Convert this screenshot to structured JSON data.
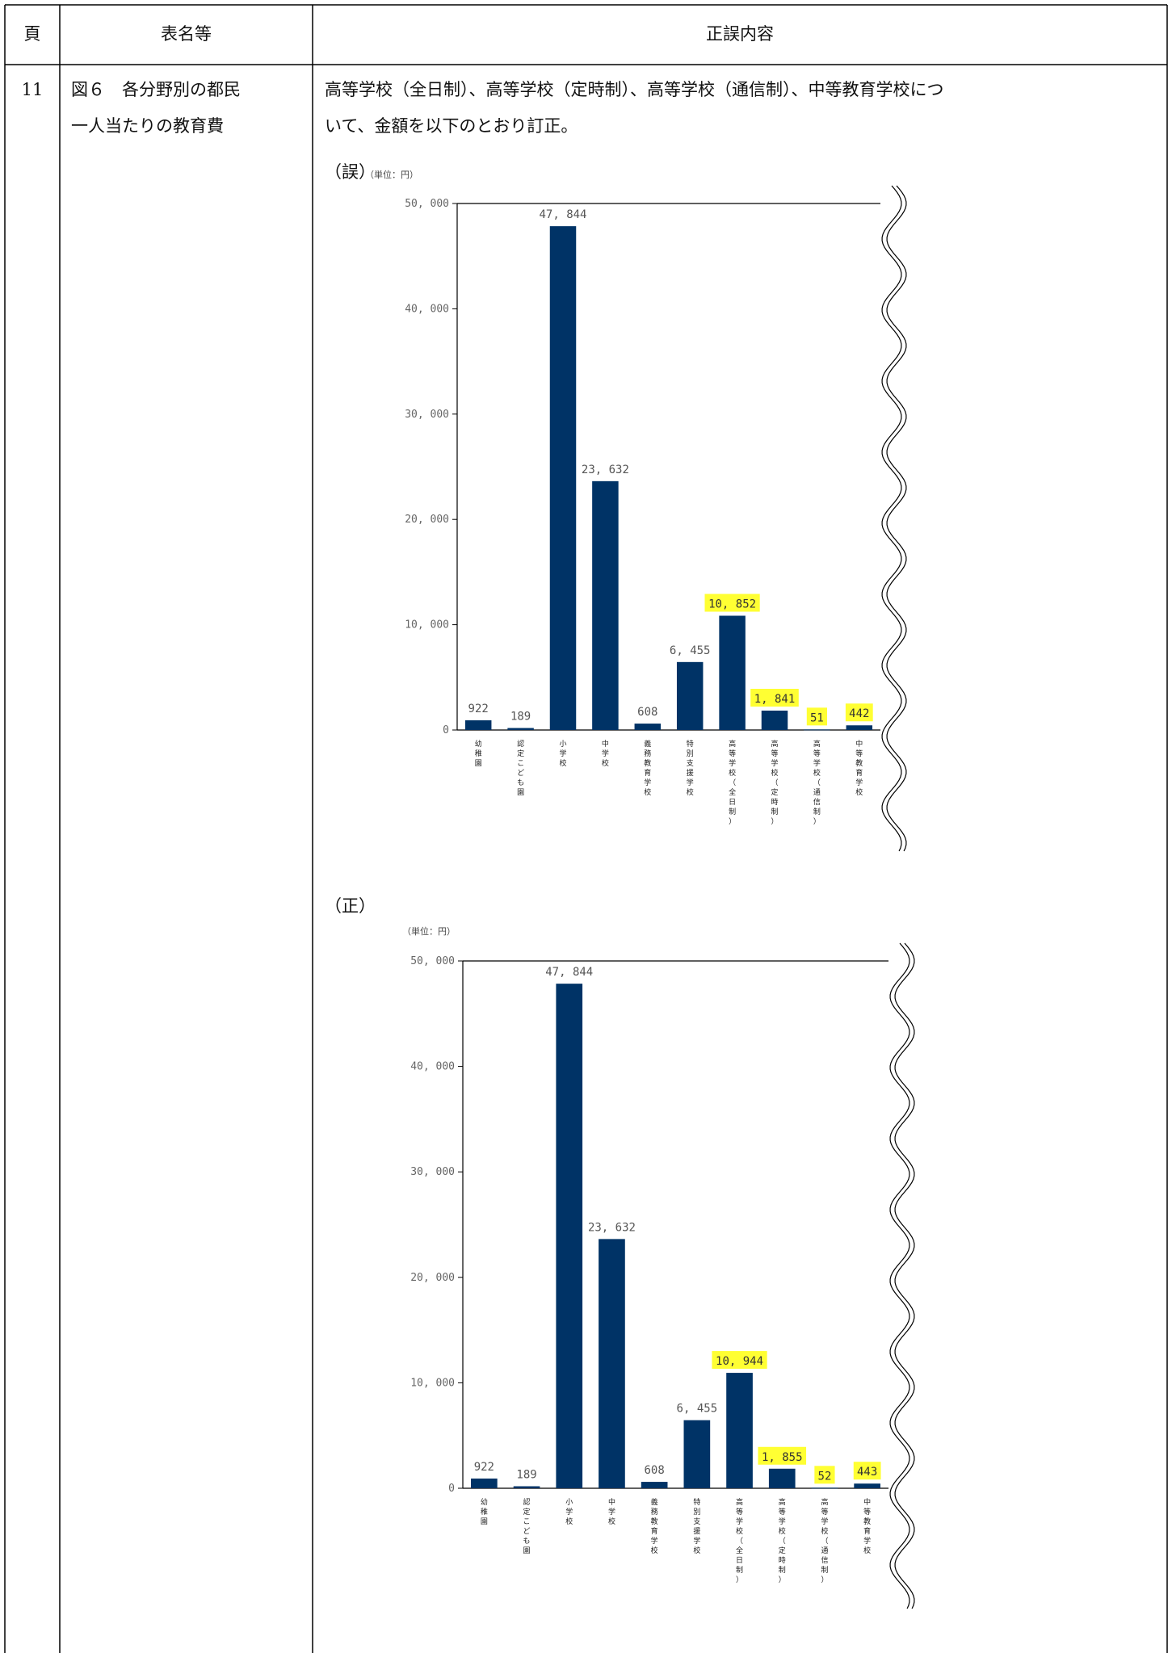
{
  "table": {
    "headers": {
      "page": "頁",
      "table_name": "表名等",
      "content": "正誤内容"
    },
    "row": {
      "page": "11",
      "table_name_line1": "図６　各分野別の都民",
      "table_name_line2": "一人当たりの教育費",
      "content_line1": "高等学校（全日制）、高等学校（定時制）、高等学校（通信制）、中等教育学校につ",
      "content_line2": "いて、金額を以下のとおり訂正。"
    }
  },
  "colors": {
    "bar": "#003366",
    "highlight": "#ffff33",
    "line": "#000000"
  },
  "chart_data": [
    {
      "type": "bar",
      "heading": "（誤）",
      "unit_label": "（単位：円）",
      "ylim": [
        0,
        50000
      ],
      "yticks": [
        0,
        10000,
        20000,
        30000,
        40000,
        50000
      ],
      "ytick_labels": [
        "0",
        "10, 000",
        "20, 000",
        "30, 000",
        "40, 000",
        "50, 000"
      ],
      "categories": [
        "幼稚園",
        "認定こども園",
        "小学校",
        "中学校",
        "義務教育学校",
        "特別支援学校",
        "高等学校（全日制）",
        "高等学校（定時制）",
        "高等学校（通信制）",
        "中等教育学校"
      ],
      "values": [
        922,
        189,
        47844,
        23632,
        608,
        6455,
        10852,
        1841,
        51,
        442
      ],
      "value_labels": [
        "922",
        "189",
        "47, 844",
        "23, 632",
        "608",
        "6, 455",
        "10, 852",
        "1, 841",
        "51",
        "442"
      ],
      "highlighted": [
        false,
        false,
        false,
        false,
        false,
        false,
        true,
        true,
        true,
        true
      ],
      "grid": false
    },
    {
      "type": "bar",
      "heading": "（正）",
      "unit_label": "（単位：円）",
      "ylim": [
        0,
        50000
      ],
      "yticks": [
        0,
        10000,
        20000,
        30000,
        40000,
        50000
      ],
      "ytick_labels": [
        "0",
        "10, 000",
        "20, 000",
        "30, 000",
        "40, 000",
        "50, 000"
      ],
      "categories": [
        "幼稚園",
        "認定こども園",
        "小学校",
        "中学校",
        "義務教育学校",
        "特別支援学校",
        "高等学校（全日制）",
        "高等学校（定時制）",
        "高等学校（通信制）",
        "中等教育学校"
      ],
      "values": [
        922,
        189,
        47844,
        23632,
        608,
        6455,
        10944,
        1855,
        52,
        443
      ],
      "value_labels": [
        "922",
        "189",
        "47, 844",
        "23, 632",
        "608",
        "6, 455",
        "10, 944",
        "1, 855",
        "52",
        "443"
      ],
      "highlighted": [
        false,
        false,
        false,
        false,
        false,
        false,
        true,
        true,
        true,
        true
      ],
      "grid": false
    }
  ]
}
